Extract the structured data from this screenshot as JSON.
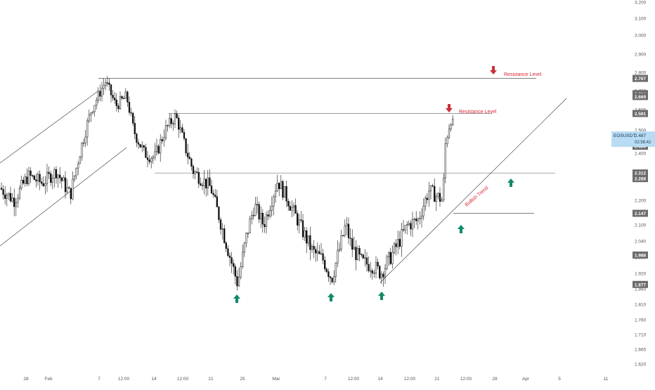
{
  "symbol_badge": {
    "symbol": "EOSUSDT",
    "price": "2.487",
    "timer": "02:58:42"
  },
  "colors": {
    "up": "#111111",
    "down": "#111111",
    "arrow_up": "#0f8a6a",
    "arrow_down": "#c8313b",
    "annotation": "#d92634",
    "line": "#333333",
    "label_bg": "#6b6b6b",
    "badge_bg": "#b9dcf5"
  },
  "annotations": {
    "resistance_1": "Resistance Level",
    "resistance_2": "Resistance Level",
    "trend": "Bullish Trend"
  },
  "chart_data": {
    "type": "candlestick",
    "y_range": [
      1.62,
      3.2
    ],
    "y_ticks": [
      "3.200",
      "3.100",
      "3.000",
      "2.900",
      "2.800",
      "2.700",
      "2.600",
      "2.500",
      "2.400",
      "2.300",
      "2.200",
      "2.100",
      "2.040",
      "1.980",
      "1.920",
      "1.860",
      "1.810",
      "1.760",
      "1.710",
      "1.665",
      "1.620"
    ],
    "x_ticks": [
      "28",
      "Feb",
      "7",
      "12:00",
      "14",
      "12:00",
      "21",
      "25",
      "Mar",
      "7",
      "12:00",
      "14",
      "12:00",
      "21",
      "12:00",
      "28",
      "Apr",
      "5",
      "11"
    ],
    "price_labels": [
      {
        "text": "2.767",
        "value": 2.767
      },
      {
        "text": "2.684",
        "value": 2.684
      },
      {
        "text": "2.669",
        "value": 2.669
      },
      {
        "text": "2.581",
        "value": 2.581
      },
      {
        "text": "2.430",
        "value": 2.43
      },
      {
        "text": "2.312",
        "value": 2.312
      },
      {
        "text": "2.288",
        "value": 2.288
      },
      {
        "text": "2.147",
        "value": 2.147
      },
      {
        "text": "1.988",
        "value": 1.988
      },
      {
        "text": "1.877",
        "value": 1.877
      }
    ],
    "levels": [
      2.767,
      2.581,
      2.312,
      2.147
    ],
    "trend_line": [
      [
        1.877,
        "Mar 14"
      ],
      [
        2.669,
        "Apr 1"
      ]
    ],
    "arrows_up": [
      "Feb 24",
      "Mar 7",
      "Mar 14",
      "Mar 24",
      "Mar 29"
    ],
    "arrows_down": [
      "Mar 28",
      "Mar 22"
    ],
    "last_price": 2.487
  }
}
